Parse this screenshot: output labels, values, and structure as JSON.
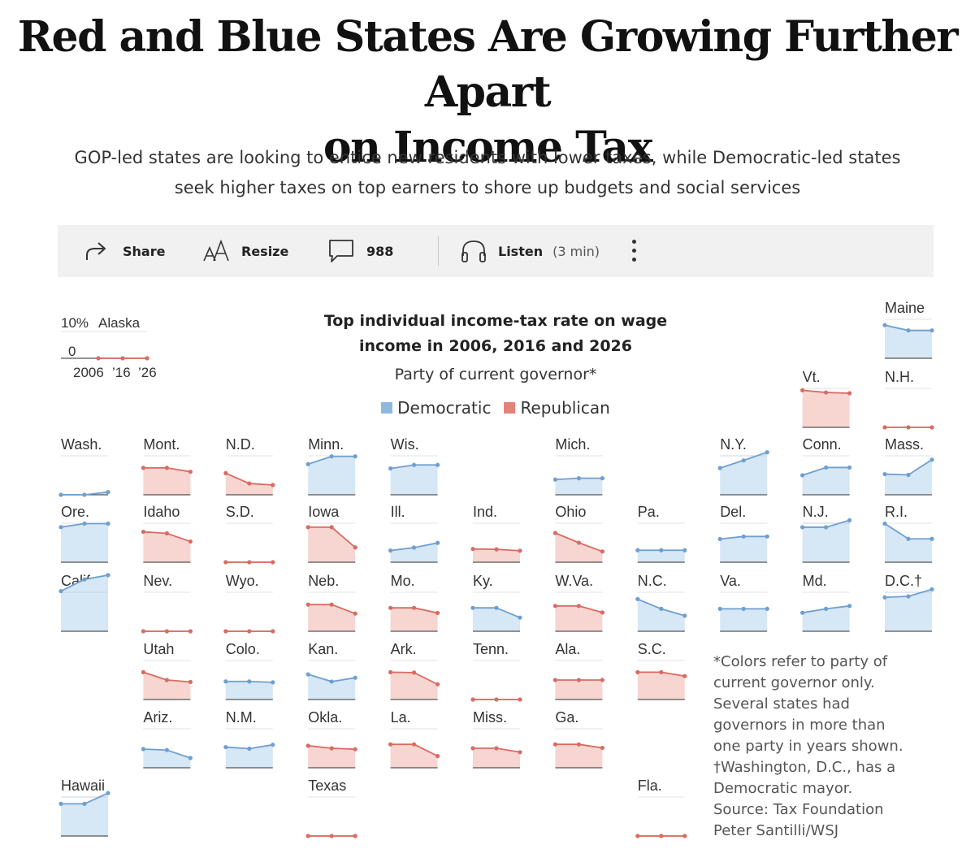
{
  "headline": [
    "Red and Blue States Are Growing Further Apart",
    "on Income Tax"
  ],
  "dek": [
    "GOP-led states are looking to entice new residents with lower taxes, while Democratic-led states",
    "seek higher taxes on top earners to shore up budgets and social services"
  ],
  "toolbar": {
    "share_label": "Share",
    "resize_label": "Resize",
    "comments_count": "988",
    "listen_label": "Listen",
    "listen_duration": "(3 min)"
  },
  "icons": [
    "share-icon",
    "resize-icon",
    "comment-icon",
    "headphones-icon",
    "more-icon"
  ],
  "colors": {
    "democratic": "#8fb8de",
    "democratic_line": "#6f9fd0",
    "democratic_fill": "#d6e7f6",
    "republican": "#e4837a",
    "republican_line": "#d96b62",
    "republican_fill": "#f7d5d1"
  },
  "key": {
    "top_label": "10%",
    "state": "Alaska",
    "zero_label": "0",
    "x_labels": [
      "2006",
      "’16",
      "’26"
    ]
  },
  "notes": [
    "*Colors refer to party of",
    "current governor only.",
    "Several states had",
    "governors in more than",
    "one party in years shown.",
    "†Washington, D.C., has a",
    "Democratic mayor.",
    "Source: Tax Foundation",
    "Peter Santilli/WSJ"
  ],
  "chart_data": {
    "type": "line",
    "title": "Top individual income-tax rate on wage income in 2006, 2016 and 2026",
    "legend_title": "Party of current governor*",
    "legend": [
      {
        "name": "Democratic",
        "party": "D"
      },
      {
        "name": "Republican",
        "party": "R"
      }
    ],
    "x": [
      2006,
      2016,
      2026
    ],
    "ylim": [
      0,
      10
    ],
    "y_unit": "%",
    "layout": "tile grid map",
    "states": [
      {
        "name": "Alaska",
        "party": "R",
        "col": 0,
        "row": 0,
        "values": [
          0,
          0,
          0
        ]
      },
      {
        "name": "Maine",
        "party": "D",
        "col": 10,
        "row": 0,
        "values": [
          8.5,
          7.15,
          7.15
        ]
      },
      {
        "name": "Vt.",
        "party": "R",
        "col": 9,
        "row": 1,
        "values": [
          9.5,
          8.95,
          8.75
        ]
      },
      {
        "name": "N.H.",
        "party": "R",
        "col": 10,
        "row": 1,
        "values": [
          0,
          0,
          0
        ]
      },
      {
        "name": "Wash.",
        "party": "D",
        "col": 0,
        "row": 2,
        "values": [
          0,
          0,
          0.7
        ]
      },
      {
        "name": "Mont.",
        "party": "R",
        "col": 1,
        "row": 2,
        "values": [
          6.9,
          6.9,
          5.9
        ]
      },
      {
        "name": "N.D.",
        "party": "R",
        "col": 2,
        "row": 2,
        "values": [
          5.54,
          2.9,
          2.5
        ]
      },
      {
        "name": "Minn.",
        "party": "D",
        "col": 3,
        "row": 2,
        "values": [
          7.85,
          9.85,
          9.85
        ]
      },
      {
        "name": "Wis.",
        "party": "D",
        "col": 4,
        "row": 2,
        "values": [
          6.75,
          7.65,
          7.65
        ]
      },
      {
        "name": "Mich.",
        "party": "D",
        "col": 6,
        "row": 2,
        "values": [
          3.9,
          4.25,
          4.25
        ]
      },
      {
        "name": "N.Y.",
        "party": "D",
        "col": 8,
        "row": 2,
        "values": [
          6.85,
          8.82,
          10.9
        ]
      },
      {
        "name": "Conn.",
        "party": "D",
        "col": 9,
        "row": 2,
        "values": [
          5.0,
          6.99,
          6.99
        ]
      },
      {
        "name": "Mass.",
        "party": "D",
        "col": 10,
        "row": 2,
        "values": [
          5.3,
          5.1,
          9.0
        ]
      },
      {
        "name": "Ore.",
        "party": "D",
        "col": 0,
        "row": 3,
        "values": [
          9.0,
          9.9,
          9.9
        ]
      },
      {
        "name": "Idaho",
        "party": "R",
        "col": 1,
        "row": 3,
        "values": [
          7.8,
          7.4,
          5.3
        ]
      },
      {
        "name": "S.D.",
        "party": "R",
        "col": 2,
        "row": 3,
        "values": [
          0,
          0,
          0
        ]
      },
      {
        "name": "Iowa",
        "party": "R",
        "col": 3,
        "row": 3,
        "values": [
          8.98,
          8.98,
          3.8
        ]
      },
      {
        "name": "Ill.",
        "party": "D",
        "col": 4,
        "row": 3,
        "values": [
          3.0,
          3.75,
          4.95
        ]
      },
      {
        "name": "Ind.",
        "party": "R",
        "col": 5,
        "row": 3,
        "values": [
          3.4,
          3.3,
          2.95
        ]
      },
      {
        "name": "Ohio",
        "party": "R",
        "col": 6,
        "row": 3,
        "values": [
          7.5,
          5.0,
          2.75
        ]
      },
      {
        "name": "Pa.",
        "party": "D",
        "col": 7,
        "row": 3,
        "values": [
          3.07,
          3.07,
          3.07
        ]
      },
      {
        "name": "Del.",
        "party": "D",
        "col": 8,
        "row": 3,
        "values": [
          5.95,
          6.6,
          6.6
        ]
      },
      {
        "name": "N.J.",
        "party": "D",
        "col": 9,
        "row": 3,
        "values": [
          8.97,
          8.97,
          10.75
        ]
      },
      {
        "name": "R.I.",
        "party": "D",
        "col": 10,
        "row": 3,
        "values": [
          9.9,
          5.99,
          5.99
        ]
      },
      {
        "name": "Calif.",
        "party": "D",
        "col": 0,
        "row": 4,
        "values": [
          10.3,
          13.3,
          14.4
        ]
      },
      {
        "name": "Nev.",
        "party": "R",
        "col": 1,
        "row": 4,
        "values": [
          0,
          0,
          0
        ]
      },
      {
        "name": "Wyo.",
        "party": "R",
        "col": 2,
        "row": 4,
        "values": [
          0,
          0,
          0
        ]
      },
      {
        "name": "Neb.",
        "party": "R",
        "col": 3,
        "row": 4,
        "values": [
          6.84,
          6.84,
          4.55
        ]
      },
      {
        "name": "Mo.",
        "party": "R",
        "col": 4,
        "row": 4,
        "values": [
          6.0,
          6.0,
          4.7
        ]
      },
      {
        "name": "Ky.",
        "party": "D",
        "col": 5,
        "row": 4,
        "values": [
          6.0,
          6.0,
          3.5
        ]
      },
      {
        "name": "W.Va.",
        "party": "R",
        "col": 6,
        "row": 4,
        "values": [
          6.5,
          6.5,
          4.82
        ]
      },
      {
        "name": "N.C.",
        "party": "D",
        "col": 7,
        "row": 4,
        "values": [
          8.25,
          5.75,
          3.99
        ]
      },
      {
        "name": "Va.",
        "party": "D",
        "col": 8,
        "row": 4,
        "values": [
          5.75,
          5.75,
          5.75
        ]
      },
      {
        "name": "Md.",
        "party": "D",
        "col": 9,
        "row": 4,
        "values": [
          4.75,
          5.75,
          6.5
        ]
      },
      {
        "name": "D.C.†",
        "party": "D",
        "col": 10,
        "row": 4,
        "values": [
          8.7,
          8.95,
          10.75
        ]
      },
      {
        "name": "Utah",
        "party": "R",
        "col": 1,
        "row": 5,
        "values": [
          7.0,
          5.0,
          4.5
        ]
      },
      {
        "name": "Colo.",
        "party": "D",
        "col": 2,
        "row": 5,
        "values": [
          4.63,
          4.63,
          4.4
        ]
      },
      {
        "name": "Kan.",
        "party": "D",
        "col": 3,
        "row": 5,
        "values": [
          6.45,
          4.6,
          5.58
        ]
      },
      {
        "name": "Ark.",
        "party": "R",
        "col": 4,
        "row": 5,
        "values": [
          7.0,
          6.9,
          3.9
        ]
      },
      {
        "name": "Tenn.",
        "party": "R",
        "col": 5,
        "row": 5,
        "values": [
          0,
          0,
          0
        ]
      },
      {
        "name": "Ala.",
        "party": "R",
        "col": 6,
        "row": 5,
        "values": [
          5.0,
          5.0,
          5.0
        ]
      },
      {
        "name": "S.C.",
        "party": "R",
        "col": 7,
        "row": 5,
        "values": [
          7.0,
          7.0,
          6.0
        ]
      },
      {
        "name": "Ariz.",
        "party": "D",
        "col": 1,
        "row": 6,
        "values": [
          4.79,
          4.54,
          2.5
        ]
      },
      {
        "name": "N.M.",
        "party": "D",
        "col": 2,
        "row": 6,
        "values": [
          5.3,
          4.9,
          5.9
        ]
      },
      {
        "name": "Okla.",
        "party": "R",
        "col": 3,
        "row": 6,
        "values": [
          5.65,
          5.0,
          4.75
        ]
      },
      {
        "name": "La.",
        "party": "R",
        "col": 4,
        "row": 6,
        "values": [
          6.0,
          6.0,
          3.0
        ]
      },
      {
        "name": "Miss.",
        "party": "R",
        "col": 5,
        "row": 6,
        "values": [
          5.0,
          5.0,
          4.0
        ]
      },
      {
        "name": "Ga.",
        "party": "R",
        "col": 6,
        "row": 6,
        "values": [
          6.0,
          6.0,
          5.09
        ]
      },
      {
        "name": "Hawaii",
        "party": "D",
        "col": 0,
        "row": 7,
        "values": [
          8.25,
          8.25,
          11.0
        ]
      },
      {
        "name": "Texas",
        "party": "R",
        "col": 3,
        "row": 7,
        "values": [
          0,
          0,
          0
        ]
      },
      {
        "name": "Fla.",
        "party": "R",
        "col": 7,
        "row": 7,
        "values": [
          0,
          0,
          0
        ]
      }
    ]
  }
}
